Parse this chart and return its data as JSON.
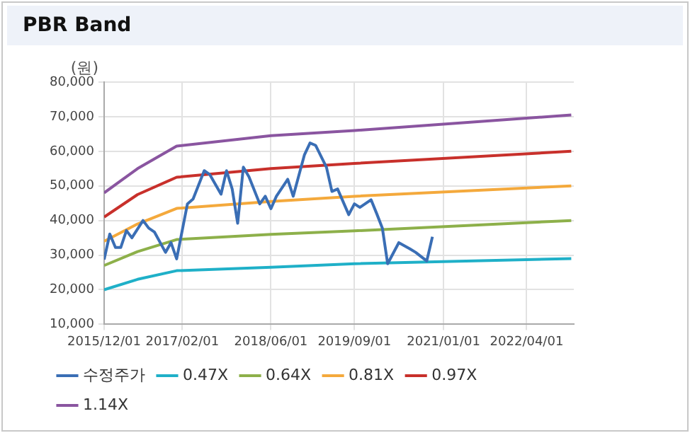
{
  "chart_data": {
    "type": "line",
    "title": "PBR Band",
    "ylabel": "(원)",
    "xlim": [
      "2015-12-01",
      "2022-12-15"
    ],
    "xticks": [
      {
        "value": "2015-12-01",
        "label": "2015/12/01"
      },
      {
        "value": "2017-02-01",
        "label": "2017/02/01"
      },
      {
        "value": "2018-06-01",
        "label": "2018/06/01"
      },
      {
        "value": "2019-09-01",
        "label": "2019/09/01"
      },
      {
        "value": "2021-01-01",
        "label": "2021/01/01"
      },
      {
        "value": "2022-04-01",
        "label": "2022/04/01"
      }
    ],
    "ylim": [
      10000,
      80000
    ],
    "yticks": [
      {
        "value": 10000,
        "label": "10,000"
      },
      {
        "value": 20000,
        "label": "20,000"
      },
      {
        "value": 30000,
        "label": "30,000"
      },
      {
        "value": 40000,
        "label": "40,000"
      },
      {
        "value": 50000,
        "label": "50,000"
      },
      {
        "value": 60000,
        "label": "60,000"
      },
      {
        "value": 70000,
        "label": "70,000"
      },
      {
        "value": 80000,
        "label": "80,000"
      }
    ],
    "grid": true,
    "legend": "bottom",
    "marker": "none",
    "line_style": "solid",
    "series": [
      {
        "name": "수정주가",
        "color": "#3a6eb5",
        "x": [
          "2015-12",
          "2016-01",
          "2016-02",
          "2016-03",
          "2016-04",
          "2016-05",
          "2016-07",
          "2016-08",
          "2016-09",
          "2016-11",
          "2016-12",
          "2017-01",
          "2017-03",
          "2017-04",
          "2017-06",
          "2017-07",
          "2017-09",
          "2017-10",
          "2017-11",
          "2017-12",
          "2018-01",
          "2018-02",
          "2018-04",
          "2018-05",
          "2018-06",
          "2018-07",
          "2018-09",
          "2018-10",
          "2018-12",
          "2019-01",
          "2019-02",
          "2019-04",
          "2019-05",
          "2019-06",
          "2019-08",
          "2019-09",
          "2019-10",
          "2019-12",
          "2020-01",
          "2020-02",
          "2020-03",
          "2020-05",
          "2020-07",
          "2020-08",
          "2020-10",
          "2020-11"
        ],
        "values": [
          28700,
          36100,
          32200,
          32200,
          37100,
          35000,
          40000,
          37800,
          36700,
          30800,
          33600,
          28900,
          44800,
          46200,
          54400,
          53300,
          47600,
          54400,
          49100,
          39200,
          55400,
          52600,
          44800,
          47000,
          43400,
          47000,
          51900,
          47000,
          58900,
          62400,
          61700,
          55400,
          48400,
          49100,
          41700,
          44800,
          43800,
          46000,
          42000,
          37800,
          27500,
          33600,
          31800,
          30800,
          28300,
          35300
        ]
      },
      {
        "name": "0.47X",
        "color": "#1fb0c8",
        "x": [
          "2015-12",
          "2016-06",
          "2017-01",
          "2018-06",
          "2019-09",
          "2022-12"
        ],
        "values": [
          20000,
          23000,
          25500,
          26500,
          27500,
          29000
        ]
      },
      {
        "name": "0.64X",
        "color": "#8db04a",
        "x": [
          "2015-12",
          "2016-06",
          "2017-01",
          "2018-06",
          "2019-09",
          "2022-12"
        ],
        "values": [
          27000,
          31000,
          34500,
          36000,
          37000,
          40000
        ]
      },
      {
        "name": "0.81X",
        "color": "#f4a93c",
        "x": [
          "2015-12",
          "2016-06",
          "2017-01",
          "2018-06",
          "2019-09",
          "2022-12"
        ],
        "values": [
          34000,
          39000,
          43500,
          45500,
          47000,
          50000
        ]
      },
      {
        "name": "0.97X",
        "color": "#c8302b",
        "x": [
          "2015-12",
          "2016-06",
          "2017-01",
          "2018-06",
          "2019-09",
          "2022-12"
        ],
        "values": [
          41000,
          47500,
          52500,
          55000,
          56500,
          60000
        ]
      },
      {
        "name": "1.14X",
        "color": "#8a55a0",
        "x": [
          "2015-12",
          "2016-06",
          "2017-01",
          "2018-06",
          "2019-09",
          "2022-12"
        ],
        "values": [
          48000,
          55000,
          61500,
          64500,
          66000,
          70500
        ]
      }
    ]
  }
}
